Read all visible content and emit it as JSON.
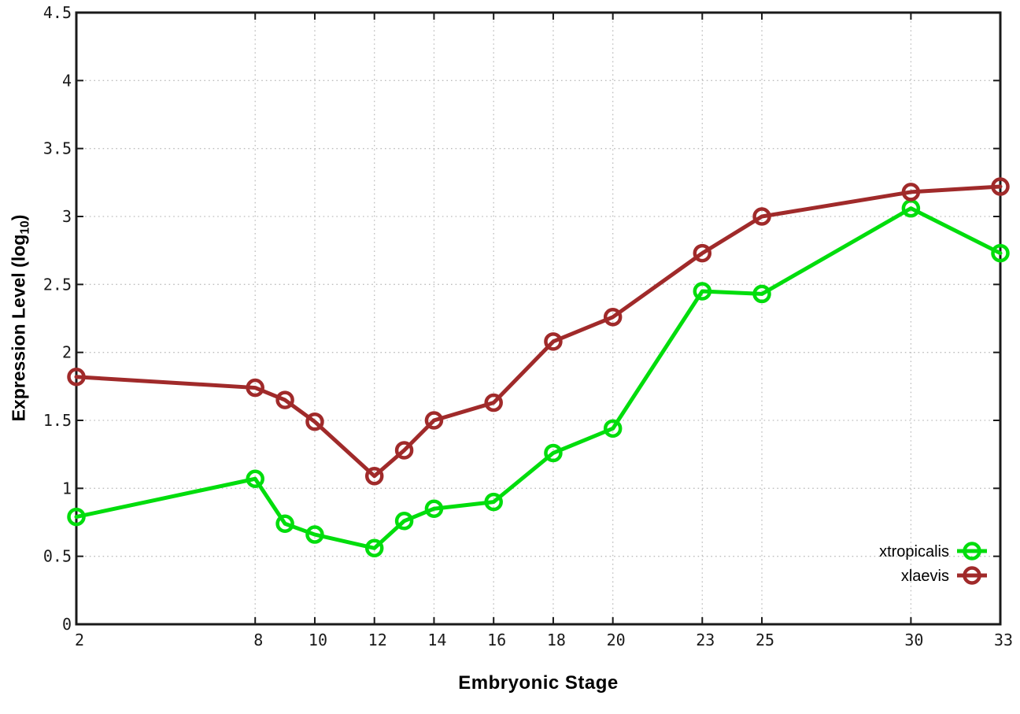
{
  "figure": {
    "xlabel": "Embryonic Stage",
    "ylabel_prefix": "Expression Level (log",
    "ylabel_sub": "10",
    "ylabel_suffix": ")"
  },
  "chart_data": {
    "type": "line",
    "title": "",
    "xlabel": "Embryonic Stage",
    "ylabel": "Expression Level (log10)",
    "x": [
      2,
      8,
      9,
      10,
      12,
      13,
      14,
      16,
      18,
      20,
      23,
      25,
      30,
      33
    ],
    "series": [
      {
        "name": "xtropicalis",
        "color": "#00DD0C",
        "values": [
          0.79,
          1.07,
          0.74,
          0.66,
          0.56,
          0.76,
          0.85,
          0.9,
          1.26,
          1.44,
          2.45,
          2.43,
          3.06,
          2.73
        ]
      },
      {
        "name": "xlaevis",
        "color": "#A02A2A",
        "values": [
          1.82,
          1.74,
          1.65,
          1.49,
          1.09,
          1.28,
          1.5,
          1.63,
          2.08,
          2.26,
          2.73,
          3.0,
          3.18,
          3.22
        ]
      }
    ],
    "xticks": [
      2,
      8,
      10,
      12,
      14,
      16,
      18,
      20,
      23,
      25,
      30,
      33
    ],
    "yticks": [
      0,
      0.5,
      1,
      1.5,
      2,
      2.5,
      3,
      3.5,
      4,
      4.5
    ],
    "xlim": [
      2,
      33
    ],
    "ylim": [
      0,
      4.5
    ],
    "grid": true,
    "legend_position": "bottom-right",
    "marker": "open-circle"
  },
  "style": {
    "grid_color": "#bdbdbd",
    "border_color": "#1a1a1a",
    "tick_color": "#1a1a1a",
    "background": "#ffffff"
  }
}
